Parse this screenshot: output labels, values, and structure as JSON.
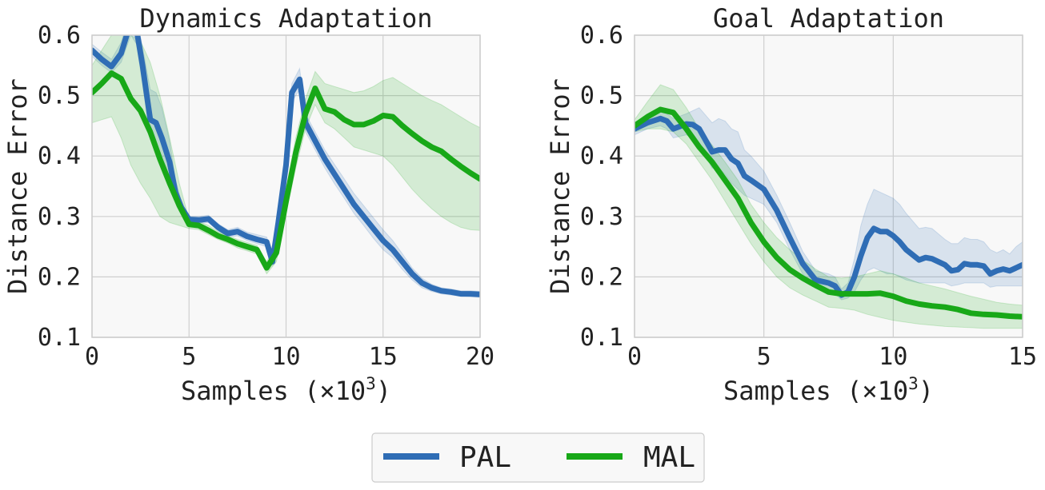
{
  "legend": {
    "placement": "bottom-center",
    "entries": [
      {
        "label": "PAL",
        "color": "#2f6db5"
      },
      {
        "label": "MAL",
        "color": "#18a818"
      }
    ]
  },
  "chart_data": [
    {
      "type": "line",
      "title": "Dynamics Adaptation",
      "xlabel": "Samples (×10",
      "xlabel_sup": "3",
      "xlabel_end": ")",
      "ylabel": "Distance Error",
      "xlim": [
        0,
        20
      ],
      "ylim": [
        0.1,
        0.6
      ],
      "xticks": [
        0,
        5,
        10,
        15,
        20
      ],
      "yticks": [
        0.1,
        0.2,
        0.3,
        0.4,
        0.5,
        0.6
      ],
      "grid": true,
      "series": [
        {
          "name": "PAL",
          "color": "#2f6db5",
          "x": [
            0,
            0.5,
            1,
            1.5,
            2,
            2.3,
            2.6,
            3,
            3.3,
            3.6,
            4,
            4.3,
            4.6,
            5,
            5.5,
            6,
            6.5,
            7,
            7.5,
            8,
            8.5,
            9,
            9.3,
            9.6,
            10,
            10.3,
            10.7,
            11,
            11.5,
            12,
            12.5,
            13,
            13.5,
            14,
            14.5,
            15,
            15.5,
            16,
            16.5,
            17,
            17.5,
            18,
            18.5,
            19,
            19.5,
            20
          ],
          "y": [
            0.575,
            0.56,
            0.548,
            0.57,
            0.622,
            0.608,
            0.55,
            0.46,
            0.455,
            0.43,
            0.39,
            0.34,
            0.315,
            0.295,
            0.294,
            0.296,
            0.282,
            0.272,
            0.275,
            0.267,
            0.262,
            0.258,
            0.225,
            0.29,
            0.385,
            0.505,
            0.527,
            0.455,
            0.425,
            0.395,
            0.37,
            0.345,
            0.32,
            0.3,
            0.28,
            0.26,
            0.245,
            0.225,
            0.205,
            0.19,
            0.182,
            0.177,
            0.175,
            0.172,
            0.172,
            0.171
          ],
          "band_low": [
            0.565,
            0.55,
            0.538,
            0.555,
            0.6,
            0.585,
            0.52,
            0.43,
            0.41,
            0.39,
            0.36,
            0.325,
            0.305,
            0.29,
            0.289,
            0.29,
            0.276,
            0.266,
            0.268,
            0.26,
            0.255,
            0.25,
            0.218,
            0.28,
            0.37,
            0.49,
            0.51,
            0.44,
            0.41,
            0.38,
            0.354,
            0.33,
            0.305,
            0.285,
            0.264,
            0.245,
            0.232,
            0.212,
            0.195,
            0.182,
            0.176,
            0.172,
            0.17,
            0.168,
            0.167,
            0.166
          ],
          "band_high": [
            0.585,
            0.572,
            0.56,
            0.588,
            0.64,
            0.63,
            0.58,
            0.51,
            0.505,
            0.48,
            0.425,
            0.36,
            0.325,
            0.3,
            0.3,
            0.302,
            0.288,
            0.278,
            0.282,
            0.274,
            0.27,
            0.266,
            0.234,
            0.3,
            0.4,
            0.52,
            0.545,
            0.47,
            0.44,
            0.41,
            0.386,
            0.362,
            0.338,
            0.318,
            0.298,
            0.278,
            0.26,
            0.238,
            0.215,
            0.198,
            0.188,
            0.182,
            0.18,
            0.177,
            0.177,
            0.176
          ]
        },
        {
          "name": "MAL",
          "color": "#18a818",
          "x": [
            0,
            0.5,
            1,
            1.5,
            2,
            2.5,
            3,
            3.5,
            4,
            4.5,
            5,
            5.5,
            6,
            6.5,
            7,
            7.5,
            8,
            8.5,
            9,
            9.5,
            10,
            10.5,
            11,
            11.5,
            12,
            12.5,
            13,
            13.5,
            14,
            14.5,
            15,
            15.5,
            16,
            16.5,
            17,
            17.5,
            18,
            18.5,
            19,
            19.5,
            20
          ],
          "y": [
            0.505,
            0.52,
            0.537,
            0.528,
            0.495,
            0.475,
            0.44,
            0.395,
            0.355,
            0.318,
            0.287,
            0.285,
            0.277,
            0.268,
            0.262,
            0.255,
            0.25,
            0.245,
            0.215,
            0.24,
            0.325,
            0.405,
            0.47,
            0.512,
            0.478,
            0.473,
            0.46,
            0.452,
            0.452,
            0.458,
            0.467,
            0.465,
            0.45,
            0.437,
            0.425,
            0.415,
            0.408,
            0.395,
            0.383,
            0.372,
            0.362
          ],
          "band_low": [
            0.455,
            0.46,
            0.465,
            0.43,
            0.385,
            0.355,
            0.33,
            0.3,
            0.29,
            0.285,
            0.28,
            0.278,
            0.27,
            0.262,
            0.256,
            0.248,
            0.243,
            0.238,
            0.205,
            0.225,
            0.305,
            0.38,
            0.445,
            0.485,
            0.455,
            0.445,
            0.43,
            0.415,
            0.41,
            0.405,
            0.4,
            0.385,
            0.365,
            0.345,
            0.328,
            0.313,
            0.3,
            0.29,
            0.282,
            0.278,
            0.277
          ],
          "band_high": [
            0.55,
            0.575,
            0.6,
            0.62,
            0.6,
            0.59,
            0.555,
            0.5,
            0.43,
            0.355,
            0.295,
            0.292,
            0.285,
            0.275,
            0.268,
            0.262,
            0.257,
            0.252,
            0.225,
            0.255,
            0.345,
            0.43,
            0.495,
            0.54,
            0.52,
            0.515,
            0.51,
            0.505,
            0.508,
            0.515,
            0.525,
            0.53,
            0.52,
            0.51,
            0.5,
            0.492,
            0.485,
            0.475,
            0.465,
            0.455,
            0.447
          ]
        }
      ]
    },
    {
      "type": "line",
      "title": "Goal Adaptation",
      "xlabel": "Samples (×10",
      "xlabel_sup": "3",
      "xlabel_end": ")",
      "ylabel": "Distance Error",
      "xlim": [
        0,
        15
      ],
      "ylim": [
        0.1,
        0.6
      ],
      "xticks": [
        0,
        5,
        10,
        15
      ],
      "yticks": [
        0.1,
        0.2,
        0.3,
        0.4,
        0.5,
        0.6
      ],
      "grid": true,
      "series": [
        {
          "name": "PAL",
          "color": "#2f6db5",
          "x": [
            0,
            0.5,
            1,
            1.25,
            1.5,
            2,
            2.25,
            2.5,
            3,
            3.25,
            3.5,
            3.75,
            4,
            4.25,
            4.5,
            5,
            5.5,
            6,
            6.5,
            7,
            7.5,
            7.75,
            8,
            8.25,
            8.5,
            8.75,
            9,
            9.25,
            9.5,
            9.75,
            10,
            10.25,
            10.5,
            11,
            11.25,
            11.5,
            12,
            12.25,
            12.5,
            12.75,
            13,
            13.25,
            13.5,
            13.75,
            14,
            14.25,
            14.5,
            14.75,
            15
          ],
          "y": [
            0.445,
            0.455,
            0.462,
            0.458,
            0.445,
            0.453,
            0.452,
            0.445,
            0.407,
            0.41,
            0.41,
            0.395,
            0.388,
            0.367,
            0.36,
            0.345,
            0.31,
            0.265,
            0.222,
            0.195,
            0.19,
            0.185,
            0.17,
            0.175,
            0.2,
            0.235,
            0.265,
            0.28,
            0.275,
            0.275,
            0.268,
            0.258,
            0.245,
            0.228,
            0.232,
            0.23,
            0.22,
            0.21,
            0.212,
            0.222,
            0.22,
            0.22,
            0.218,
            0.205,
            0.21,
            0.213,
            0.21,
            0.215,
            0.22
          ],
          "band_low": [
            0.435,
            0.445,
            0.45,
            0.445,
            0.43,
            0.435,
            0.43,
            0.42,
            0.38,
            0.38,
            0.37,
            0.355,
            0.345,
            0.335,
            0.33,
            0.32,
            0.29,
            0.245,
            0.205,
            0.182,
            0.177,
            0.172,
            0.162,
            0.165,
            0.175,
            0.195,
            0.21,
            0.215,
            0.21,
            0.205,
            0.205,
            0.2,
            0.195,
            0.19,
            0.19,
            0.19,
            0.19,
            0.185,
            0.187,
            0.19,
            0.19,
            0.19,
            0.19,
            0.183,
            0.185,
            0.185,
            0.185,
            0.185,
            0.185
          ],
          "band_high": [
            0.455,
            0.465,
            0.475,
            0.47,
            0.462,
            0.47,
            0.475,
            0.48,
            0.455,
            0.462,
            0.458,
            0.445,
            0.44,
            0.41,
            0.4,
            0.375,
            0.335,
            0.29,
            0.242,
            0.21,
            0.205,
            0.2,
            0.18,
            0.19,
            0.23,
            0.285,
            0.32,
            0.345,
            0.34,
            0.335,
            0.33,
            0.32,
            0.305,
            0.28,
            0.282,
            0.28,
            0.262,
            0.255,
            0.255,
            0.265,
            0.262,
            0.262,
            0.258,
            0.245,
            0.24,
            0.245,
            0.238,
            0.25,
            0.258
          ]
        },
        {
          "name": "MAL",
          "color": "#18a818",
          "x": [
            0,
            0.5,
            1,
            1.5,
            2,
            2.5,
            3,
            3.5,
            4,
            4.5,
            5,
            5.5,
            6,
            6.5,
            7,
            7.5,
            8,
            8.5,
            9,
            9.5,
            10,
            10.5,
            11,
            11.5,
            12,
            12.5,
            13,
            13.5,
            14,
            14.5,
            15
          ],
          "y": [
            0.45,
            0.465,
            0.477,
            0.472,
            0.445,
            0.415,
            0.39,
            0.36,
            0.33,
            0.29,
            0.258,
            0.232,
            0.212,
            0.198,
            0.186,
            0.175,
            0.172,
            0.172,
            0.172,
            0.173,
            0.168,
            0.16,
            0.155,
            0.152,
            0.15,
            0.146,
            0.14,
            0.138,
            0.137,
            0.135,
            0.134
          ],
          "band_low": [
            0.44,
            0.445,
            0.445,
            0.44,
            0.42,
            0.39,
            0.36,
            0.325,
            0.29,
            0.255,
            0.225,
            0.2,
            0.182,
            0.17,
            0.16,
            0.15,
            0.148,
            0.145,
            0.138,
            0.133,
            0.128,
            0.125,
            0.122,
            0.12,
            0.118,
            0.117,
            0.116,
            0.115,
            0.115,
            0.115,
            0.115
          ],
          "band_high": [
            0.46,
            0.49,
            0.518,
            0.51,
            0.48,
            0.445,
            0.418,
            0.39,
            0.36,
            0.32,
            0.29,
            0.265,
            0.245,
            0.228,
            0.213,
            0.2,
            0.198,
            0.2,
            0.205,
            0.21,
            0.205,
            0.198,
            0.19,
            0.185,
            0.18,
            0.174,
            0.168,
            0.163,
            0.158,
            0.155,
            0.153
          ]
        }
      ]
    }
  ]
}
